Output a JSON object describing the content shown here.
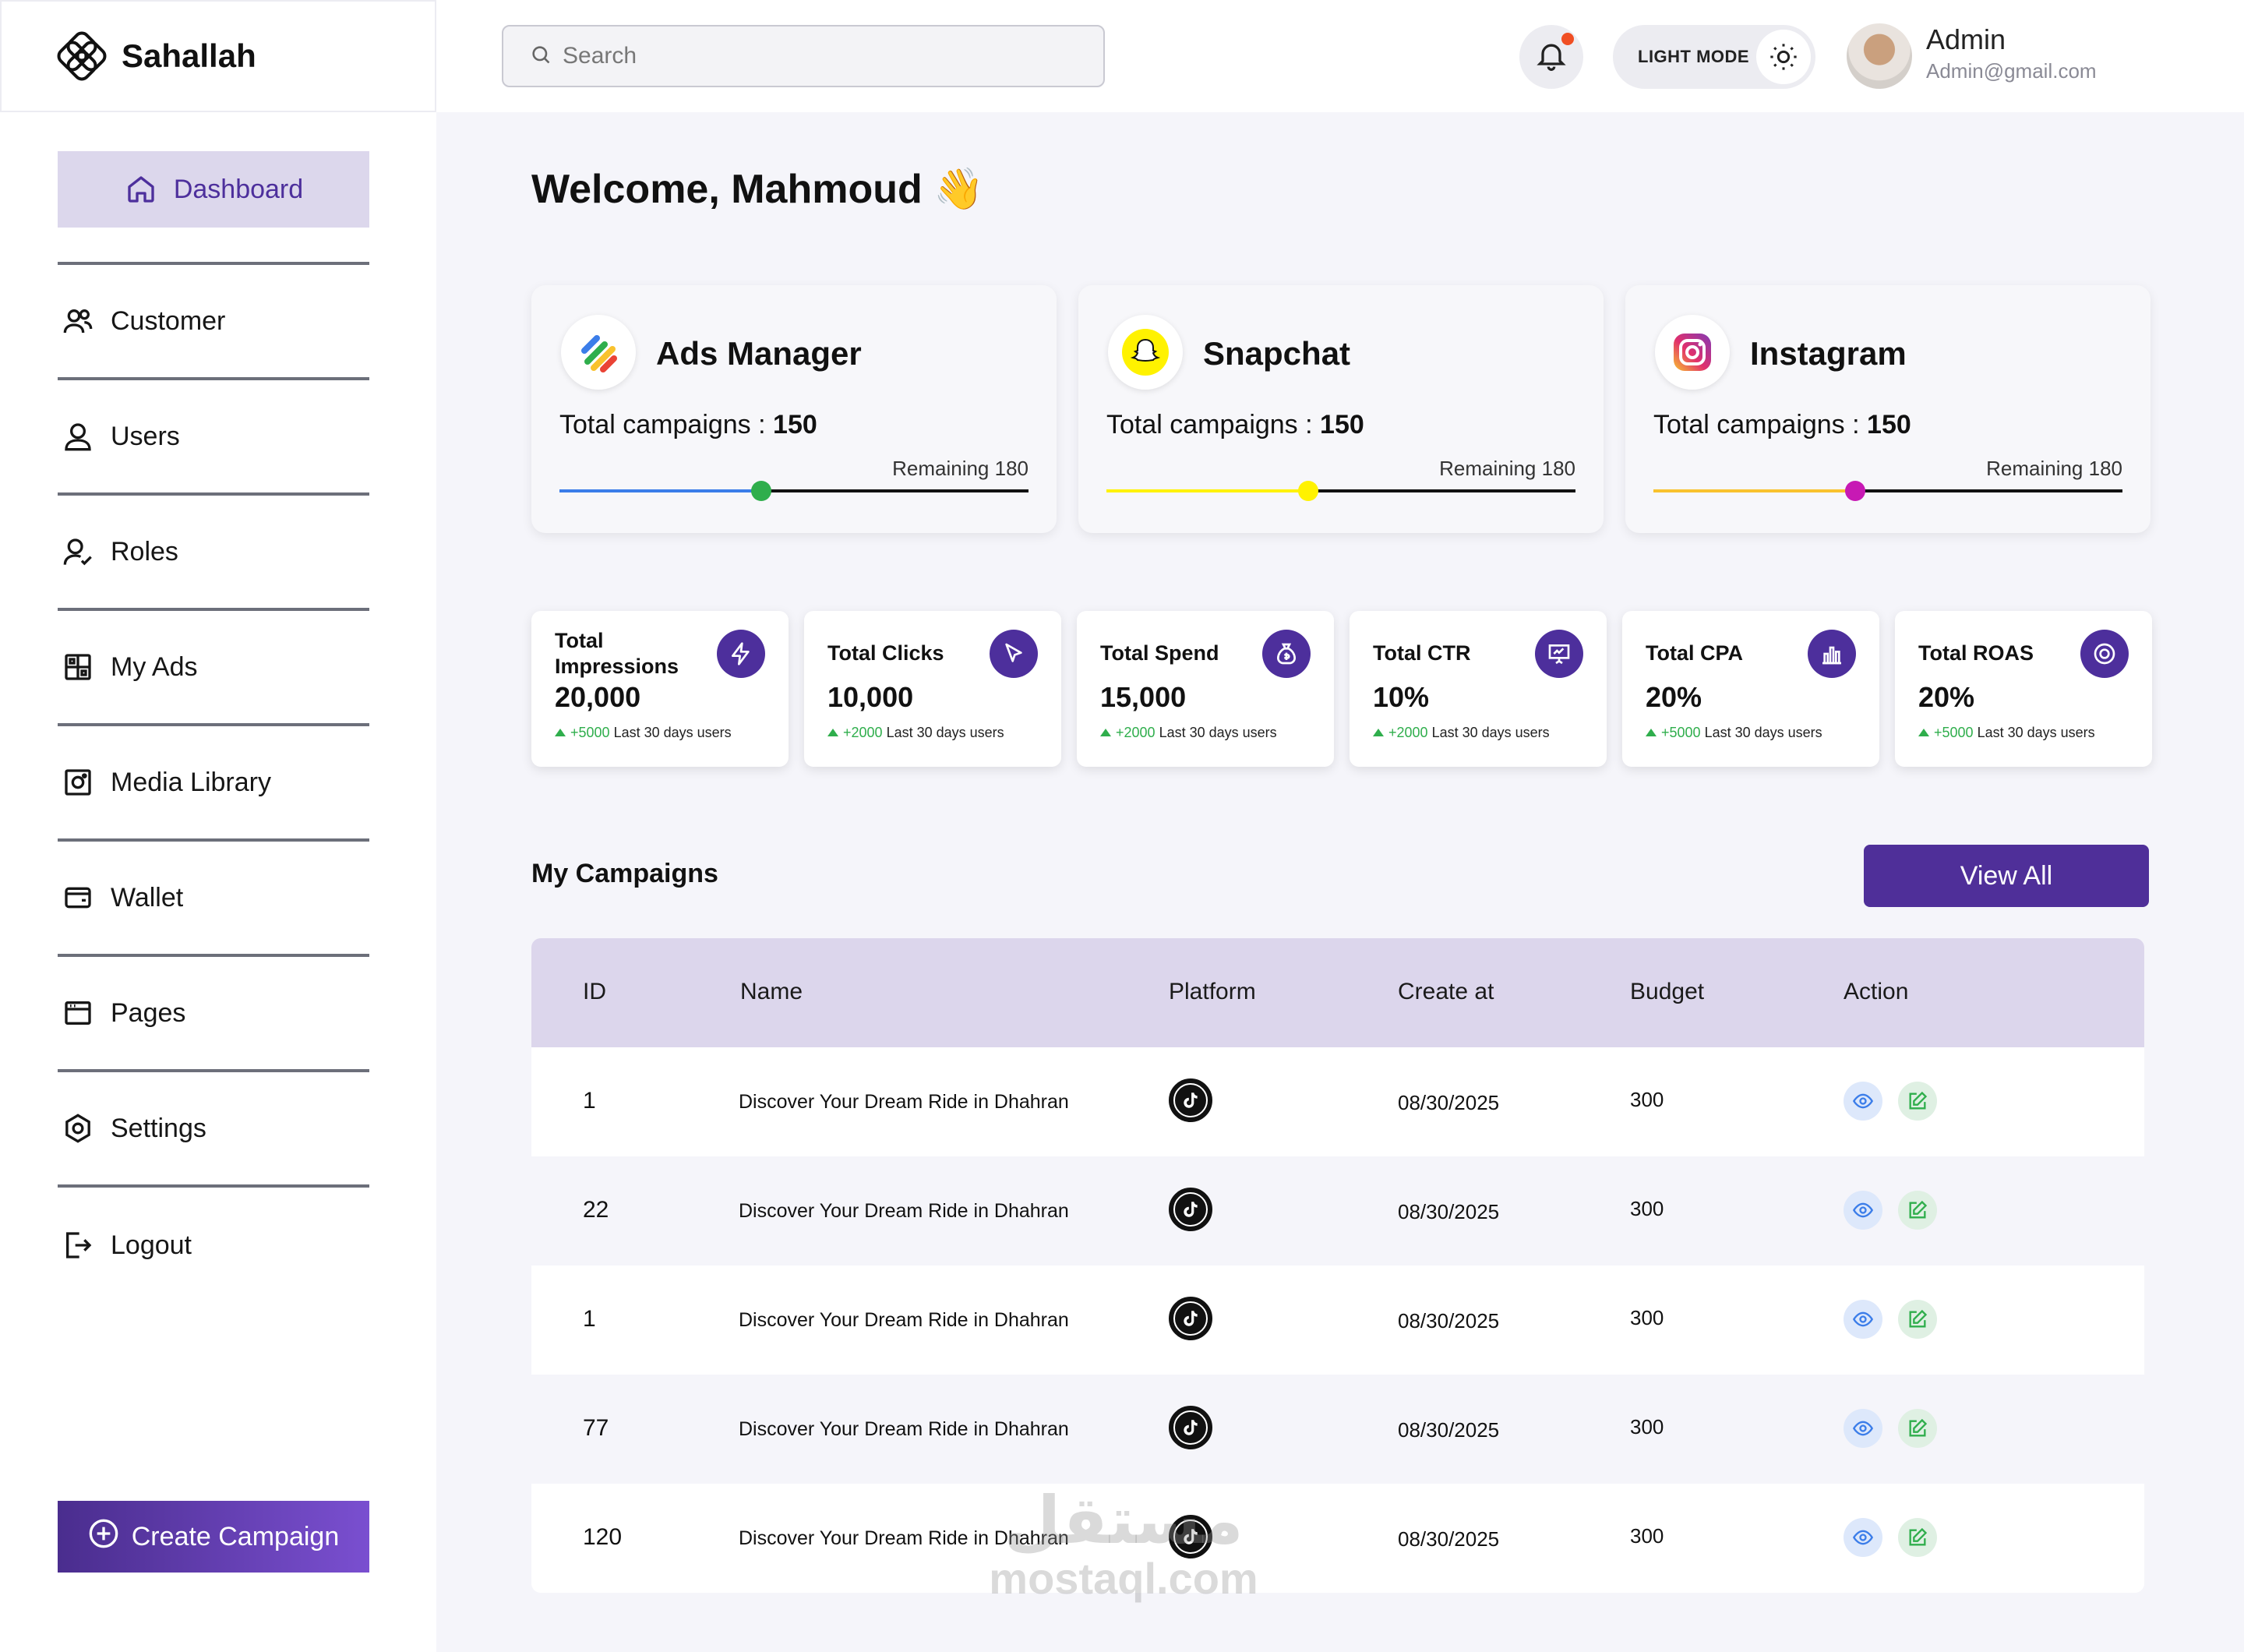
{
  "app": {
    "brand": "Sahallah"
  },
  "colors": {
    "primary": "#4d2f9c",
    "accent_light": "#dcd7ec",
    "success": "#2fae4c",
    "notification": "#f04e23"
  },
  "sidebar": {
    "items": [
      {
        "label": "Dashboard",
        "icon": "home-icon",
        "active": true
      },
      {
        "label": "Customer",
        "icon": "users-group-icon"
      },
      {
        "label": "Users",
        "icon": "user-icon"
      },
      {
        "label": "Roles",
        "icon": "user-check-icon"
      },
      {
        "label": "My Ads",
        "icon": "grid-icon"
      },
      {
        "label": "Media Library",
        "icon": "image-icon"
      },
      {
        "label": "Wallet",
        "icon": "wallet-icon"
      },
      {
        "label": "Pages",
        "icon": "browser-icon"
      },
      {
        "label": "Settings",
        "icon": "gear-icon"
      },
      {
        "label": "Logout",
        "icon": "logout-icon"
      }
    ],
    "create_label": "Create Campaign"
  },
  "header": {
    "search_placeholder": "Search",
    "mode_label": "LIGHT MODE",
    "user_name": "Admin",
    "user_email": "Admin@gmail.com"
  },
  "main": {
    "welcome": "Welcome, Mahmoud 👋",
    "platforms": [
      {
        "name": "Ads Manager",
        "total_label": "Total campaigns :",
        "total": "150",
        "remaining": "Remaining 180",
        "progress": 0.43,
        "color": "#3b7de9",
        "knob": "#2fae4c"
      },
      {
        "name": "Snapchat",
        "total_label": "Total campaigns :",
        "total": "150",
        "remaining": "Remaining 180",
        "progress": 0.43,
        "color": "#fff200",
        "knob": "#fff200"
      },
      {
        "name": "Instagram",
        "total_label": "Total campaigns :",
        "total": "150",
        "remaining": "Remaining 180",
        "progress": 0.43,
        "color": "#f9c22e",
        "knob": "#c719b4"
      }
    ],
    "stats": [
      {
        "title": "Total Impressions",
        "value": "20,000",
        "delta": "+5000",
        "note": "Last 30 days users",
        "icon": "bolt-icon"
      },
      {
        "title": "Total Clicks",
        "value": "10,000",
        "delta": "+2000",
        "note": "Last 30 days users",
        "icon": "cursor-icon"
      },
      {
        "title": "Total Spend",
        "value": "15,000",
        "delta": "+2000",
        "note": "Last 30 days users",
        "icon": "money-bag-icon"
      },
      {
        "title": "Total CTR",
        "value": "10%",
        "delta": "+2000",
        "note": "Last 30 days users",
        "icon": "presentation-chart-icon"
      },
      {
        "title": "Total CPA",
        "value": "20%",
        "delta": "+5000",
        "note": "Last 30 days users",
        "icon": "bar-chart-icon"
      },
      {
        "title": "Total ROAS",
        "value": "20%",
        "delta": "+5000",
        "note": "Last 30 days users",
        "icon": "target-icon"
      }
    ],
    "campaigns_title": "My Campaigns",
    "view_all": "View All",
    "table": {
      "headers": [
        "ID",
        "Name",
        "Platform",
        "Create at",
        "Budget",
        "Action"
      ],
      "rows": [
        {
          "id": "1",
          "name": "Discover Your Dream Ride in Dhahran",
          "platform": "tiktok-icon",
          "date": "08/30/2025",
          "budget": "300"
        },
        {
          "id": "22",
          "name": "Discover Your Dream Ride in Dhahran",
          "platform": "tiktok-icon",
          "date": "08/30/2025",
          "budget": "300"
        },
        {
          "id": "1",
          "name": "Discover Your Dream Ride in Dhahran",
          "platform": "tiktok-icon",
          "date": "08/30/2025",
          "budget": "300"
        },
        {
          "id": "77",
          "name": "Discover Your Dream Ride in Dhahran",
          "platform": "tiktok-icon",
          "date": "08/30/2025",
          "budget": "300"
        },
        {
          "id": "120",
          "name": "Discover Your Dream Ride in Dhahran",
          "platform": "tiktok-icon",
          "date": "08/30/2025",
          "budget": "300"
        }
      ]
    }
  },
  "watermark": {
    "arabic": "مستقل",
    "latin": "mostaql.com"
  }
}
